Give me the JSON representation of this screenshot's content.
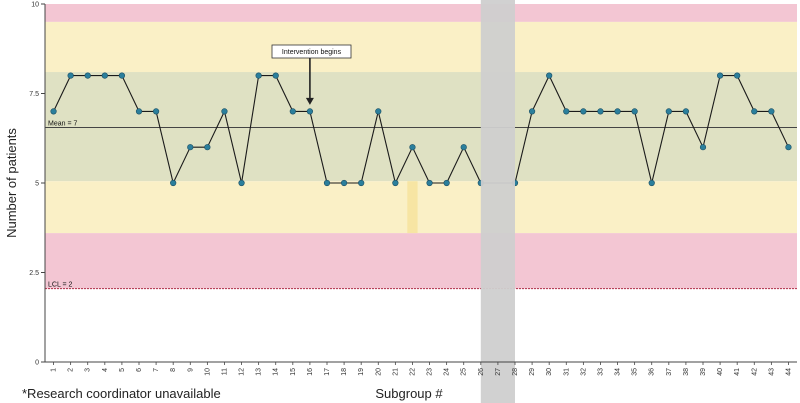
{
  "chart_data": {
    "type": "line",
    "ylabel": "Number of patients",
    "xlabel": "Subgroup #",
    "footnote": "*Research coordinator unavailable",
    "ylim": [
      0,
      10
    ],
    "yticks": [
      "0",
      "2.5",
      "5",
      "7.5",
      "10"
    ],
    "ytick_values": [
      0,
      2.5,
      5,
      7.5,
      10
    ],
    "x": [
      1,
      2,
      3,
      4,
      5,
      6,
      7,
      8,
      9,
      10,
      11,
      12,
      13,
      14,
      15,
      16,
      17,
      18,
      19,
      20,
      21,
      22,
      23,
      24,
      25,
      26,
      27,
      28,
      29,
      30,
      31,
      32,
      33,
      34,
      35,
      36,
      37,
      38,
      39,
      40,
      41,
      42,
      43,
      44
    ],
    "series": [
      {
        "values": [
          7,
          8,
          8,
          8,
          8,
          7,
          7,
          5,
          6,
          6,
          7,
          5,
          8,
          8,
          7,
          7,
          5,
          5,
          5,
          7,
          5,
          6,
          5,
          5,
          6,
          5,
          null,
          5,
          7,
          8,
          7,
          7,
          7,
          7,
          7,
          5,
          7,
          7,
          6,
          8,
          8,
          7,
          7,
          6
        ]
      }
    ],
    "center_line": {
      "label": "Mean = 7",
      "value": 6.55
    },
    "lower_limit": {
      "label": "LCL = 2",
      "value": 2.05
    },
    "zones": [
      {
        "from": 9.5,
        "to": 10,
        "color": "#f3c6d3"
      },
      {
        "from": 8.1,
        "to": 9.5,
        "color": "#faf0c6"
      },
      {
        "from": 5.05,
        "to": 8.1,
        "color": "#dfe1c3"
      },
      {
        "from": 3.6,
        "to": 5.05,
        "color": "#faf0c6"
      },
      {
        "from": 2.05,
        "to": 3.6,
        "color": "#f3c6d3"
      }
    ],
    "excluded_subgroup": 27,
    "highlight_subgroup": 22,
    "annotation": {
      "text": "Intervention begins",
      "subgroup": 16
    },
    "colors": {
      "line": "#1a1a1a",
      "point": "#2b7f9c",
      "mean_line": "#444444",
      "lcl_line": "#b0304a",
      "excluded_band": "#cfcfcf",
      "highlight": "#f6e29a"
    }
  }
}
